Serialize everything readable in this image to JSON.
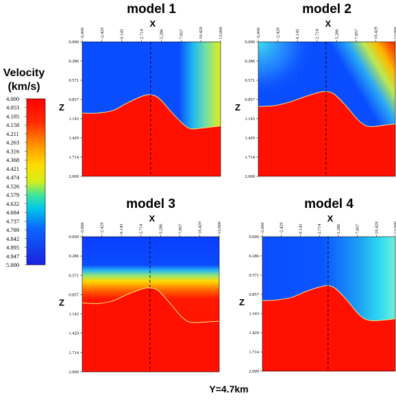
{
  "footer": "Y=4.7km",
  "colorbar": {
    "title_line1": "Velocity",
    "title_line2": "(km/s)",
    "ticks": [
      "4.000",
      "4.053",
      "4.105",
      "4.158",
      "4.211",
      "4.263",
      "4.316",
      "4.368",
      "4.421",
      "4.474",
      "4.526",
      "4.579",
      "4.632",
      "4.684",
      "4.737",
      "4.789",
      "4.842",
      "4.895",
      "4.947",
      "5.000"
    ],
    "range": [
      4.0,
      5.0
    ]
  },
  "chart_data": [
    {
      "type": "heatmap",
      "title": "model 1",
      "xlabel": "X",
      "ylabel": "Z",
      "xlim": [
        -5.0,
        13.0
      ],
      "ylim": [
        0.0,
        2.0
      ],
      "x_ticks": [
        "-5.000",
        "-2.429",
        "0.143",
        "2.714",
        "5.286",
        "7.857",
        "10.429",
        "13.000"
      ],
      "y_ticks": [
        "0.000",
        "0.286",
        "0.571",
        "0.857",
        "1.143",
        "1.429",
        "1.714",
        "2.000"
      ],
      "vertical_marker_x": 3.9,
      "interface": {
        "x": [
          -5.0,
          -3.0,
          -1.0,
          1.0,
          3.0,
          4.0,
          5.0,
          6.5,
          8.0,
          9.0,
          10.0,
          11.5,
          13.0
        ],
        "z": [
          1.06,
          1.06,
          1.02,
          0.9,
          0.8,
          0.79,
          0.84,
          1.03,
          1.21,
          1.29,
          1.29,
          1.27,
          1.25
        ]
      }
    },
    {
      "type": "heatmap",
      "title": "model 2",
      "xlabel": "X",
      "ylabel": "Z",
      "xlim": [
        -5.0,
        13.0
      ],
      "ylim": [
        0.0,
        2.0
      ],
      "x_ticks": [
        "-5.000",
        "-2.429",
        "0.143",
        "2.714",
        "5.286",
        "7.857",
        "10.429",
        "13.000"
      ],
      "y_ticks": [
        "0.000",
        "0.286",
        "0.571",
        "0.857",
        "1.143",
        "1.429",
        "1.714",
        "2.000"
      ],
      "vertical_marker_x": 3.9,
      "interface": {
        "x": [
          -5.0,
          -3.0,
          -1.0,
          1.0,
          3.0,
          4.0,
          5.0,
          6.5,
          8.0,
          9.0,
          10.0,
          11.5,
          13.0
        ],
        "z": [
          0.96,
          0.95,
          0.9,
          0.82,
          0.75,
          0.74,
          0.78,
          0.95,
          1.15,
          1.24,
          1.26,
          1.24,
          1.22
        ]
      }
    },
    {
      "type": "heatmap",
      "title": "model 3",
      "xlabel": "X",
      "ylabel": "Z",
      "xlim": [
        -5.0,
        13.0
      ],
      "ylim": [
        0.0,
        2.0
      ],
      "x_ticks": [
        "-5.000",
        "-2.429",
        "0.143",
        "2.714",
        "5.286",
        "7.857",
        "10.429",
        "13.000"
      ],
      "y_ticks": [
        "0.000",
        "0.286",
        "0.571",
        "0.857",
        "1.143",
        "1.429",
        "1.714",
        "2.000"
      ],
      "vertical_marker_x": 3.9,
      "interface": {
        "x": [
          -5.0,
          -3.0,
          -1.0,
          1.0,
          3.0,
          4.0,
          5.0,
          6.5,
          8.0,
          9.0,
          10.0,
          11.5,
          13.0
        ],
        "z": [
          0.98,
          0.99,
          0.95,
          0.85,
          0.77,
          0.76,
          0.8,
          0.98,
          1.18,
          1.26,
          1.27,
          1.26,
          1.25
        ]
      }
    },
    {
      "type": "heatmap",
      "title": "model 4",
      "xlabel": "X",
      "ylabel": "Z",
      "xlim": [
        -5.0,
        13.0
      ],
      "ylim": [
        0.0,
        2.0
      ],
      "x_ticks": [
        "-5.000",
        "-2.429",
        "0.143",
        "2.714",
        "5.286",
        "7.857",
        "10.429",
        "13.000"
      ],
      "y_ticks": [
        "0.000",
        "0.286",
        "0.571",
        "0.857",
        "1.143",
        "1.429",
        "1.714",
        "2.000"
      ],
      "vertical_marker_x": 3.9,
      "interface": {
        "x": [
          -5.0,
          -3.0,
          -1.0,
          1.0,
          3.0,
          4.0,
          5.0,
          6.5,
          8.0,
          9.0,
          10.0,
          11.5,
          13.0
        ],
        "z": [
          0.95,
          0.94,
          0.9,
          0.81,
          0.74,
          0.73,
          0.78,
          0.95,
          1.15,
          1.23,
          1.25,
          1.24,
          1.22
        ]
      }
    }
  ]
}
